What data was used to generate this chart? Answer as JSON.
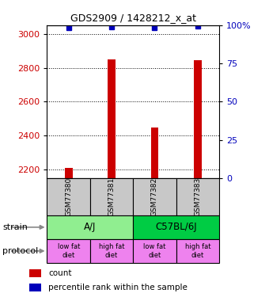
{
  "title": "GDS2909 / 1428212_x_at",
  "samples": [
    "GSM77380",
    "GSM77381",
    "GSM77382",
    "GSM77383"
  ],
  "count_values": [
    2210,
    2850,
    2450,
    2845
  ],
  "percentile_values": [
    98.5,
    99.0,
    98.5,
    99.5
  ],
  "ylim_left": [
    2150,
    3050
  ],
  "ylim_right": [
    0,
    100
  ],
  "yticks_left": [
    2200,
    2400,
    2600,
    2800,
    3000
  ],
  "yticks_right": [
    0,
    25,
    50,
    75,
    100
  ],
  "strain_labels": [
    [
      "A/J",
      0,
      2
    ],
    [
      "C57BL/6J",
      2,
      4
    ]
  ],
  "protocol_labels": [
    "low fat\ndiet",
    "high fat\ndiet",
    "low fat\ndiet",
    "high fat\ndiet"
  ],
  "strain_color_aj": "#90EE90",
  "strain_color_c57": "#00CC44",
  "protocol_color": "#EE82EE",
  "bar_color": "#CC0000",
  "blue_color": "#0000BB",
  "sample_box_color": "#C8C8C8",
  "left_tick_color": "#CC0000",
  "right_tick_color": "#0000BB",
  "legend_items": [
    {
      "color": "#CC0000",
      "label": "count"
    },
    {
      "color": "#0000BB",
      "label": "percentile rank within the sample"
    }
  ]
}
